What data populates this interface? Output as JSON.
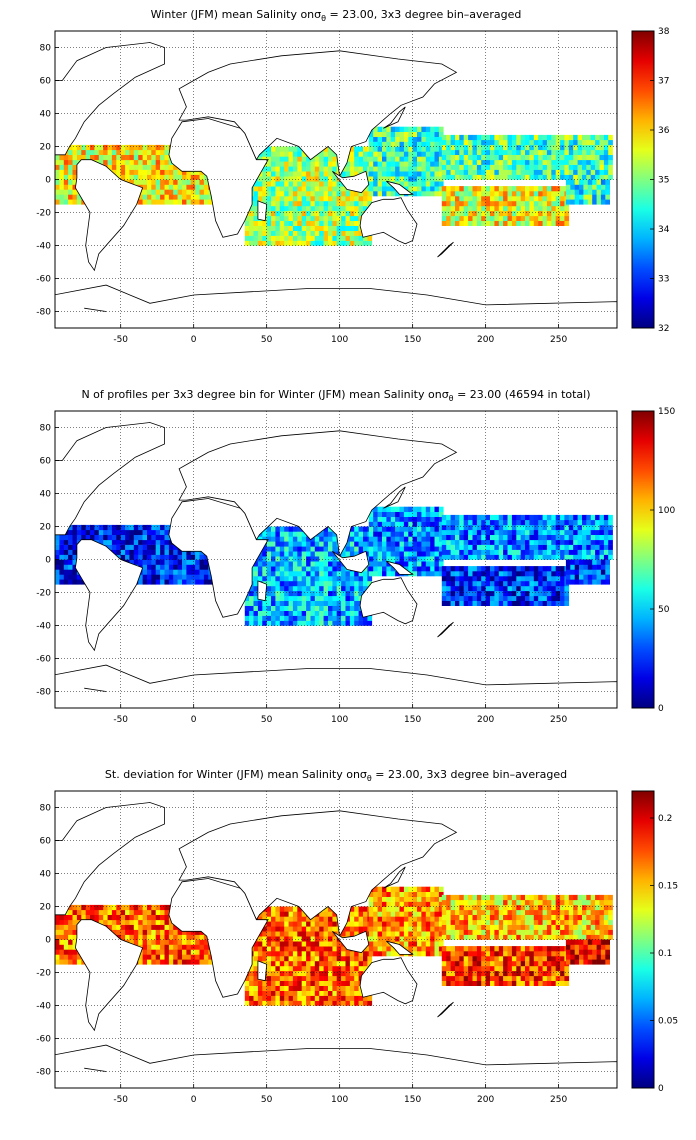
{
  "chart_data": [
    {
      "type": "heatmap",
      "title_prefix": "Winter (JFM) mean Salinity on",
      "title_sigma": "σ",
      "title_sub": "θ",
      "title_suffix": " = 23.00, 3x3 degree bin–averaged",
      "xlim": [
        -95,
        290
      ],
      "ylim": [
        -90,
        90
      ],
      "xticks": [
        "-50",
        "0",
        "50",
        "100",
        "150",
        "200",
        "250"
      ],
      "xtick_values": [
        -50,
        0,
        50,
        100,
        150,
        200,
        250
      ],
      "yticks": [
        "80",
        "60",
        "40",
        "20",
        "0",
        "-20",
        "-40",
        "-60",
        "-80"
      ],
      "ytick_values": [
        80,
        60,
        40,
        20,
        0,
        -20,
        -40,
        -60,
        -80
      ],
      "grid": true,
      "colormap": "jet",
      "colorbar": {
        "min": 32,
        "max": 38,
        "ticks": [
          "38",
          "37",
          "36",
          "35",
          "34",
          "33",
          "32"
        ],
        "tick_values": [
          38,
          37,
          36,
          35,
          34,
          33,
          32
        ]
      },
      "regions": [
        {
          "name": "tropical-atlantic",
          "lon": [
            -95,
            15
          ],
          "lat": [
            -15,
            20
          ],
          "value": 35.8
        },
        {
          "name": "indian-ocean",
          "lon": [
            35,
            120
          ],
          "lat": [
            -40,
            20
          ],
          "value": 35.2
        },
        {
          "name": "west-pacific-warm-pool",
          "lon": [
            120,
            170
          ],
          "lat": [
            -10,
            30
          ],
          "value": 34.6
        },
        {
          "name": "south-pacific",
          "lon": [
            170,
            255
          ],
          "lat": [
            -28,
            -5
          ],
          "value": 35.7
        },
        {
          "name": "north-pacific",
          "lon": [
            170,
            285
          ],
          "lat": [
            0,
            25
          ],
          "value": 34.7
        },
        {
          "name": "east-pacific",
          "lon": [
            255,
            285
          ],
          "lat": [
            -15,
            0
          ],
          "value": 34.5
        }
      ]
    },
    {
      "type": "heatmap",
      "title_prefix": "N of profiles per 3x3 degree bin for Winter (JFM) mean Salinity on",
      "title_sigma": "σ",
      "title_sub": "θ",
      "title_suffix": " = 23.00 (46594 in total)",
      "xlim": [
        -95,
        290
      ],
      "ylim": [
        -90,
        90
      ],
      "xticks": [
        "-50",
        "0",
        "50",
        "100",
        "150",
        "200",
        "250"
      ],
      "xtick_values": [
        -50,
        0,
        50,
        100,
        150,
        200,
        250
      ],
      "yticks": [
        "80",
        "60",
        "40",
        "20",
        "0",
        "-20",
        "-40",
        "-60",
        "-80"
      ],
      "ytick_values": [
        80,
        60,
        40,
        20,
        0,
        -20,
        -40,
        -60,
        -80
      ],
      "grid": true,
      "colormap": "jet",
      "colorbar": {
        "min": 0,
        "max": 150,
        "ticks": [
          "150",
          "100",
          "50",
          "0"
        ],
        "tick_values": [
          150,
          100,
          50,
          0
        ]
      },
      "regions": [
        {
          "name": "tropical-atlantic",
          "lon": [
            -95,
            15
          ],
          "lat": [
            -15,
            20
          ],
          "value": 20
        },
        {
          "name": "indian-ocean",
          "lon": [
            35,
            120
          ],
          "lat": [
            -40,
            20
          ],
          "value": 45
        },
        {
          "name": "west-pacific-warm-pool",
          "lon": [
            120,
            170
          ],
          "lat": [
            -10,
            30
          ],
          "value": 40
        },
        {
          "name": "south-pacific",
          "lon": [
            170,
            255
          ],
          "lat": [
            -28,
            -5
          ],
          "value": 25
        },
        {
          "name": "north-pacific",
          "lon": [
            170,
            285
          ],
          "lat": [
            0,
            25
          ],
          "value": 40
        },
        {
          "name": "east-pacific",
          "lon": [
            255,
            285
          ],
          "lat": [
            -15,
            0
          ],
          "value": 25
        }
      ]
    },
    {
      "type": "heatmap",
      "title_prefix": "St. deviation for Winter (JFM) mean Salinity on",
      "title_sigma": "σ",
      "title_sub": "θ",
      "title_suffix": " = 23.00, 3x3 degree bin–averaged",
      "xlim": [
        -95,
        290
      ],
      "ylim": [
        -90,
        90
      ],
      "xticks": [
        "-50",
        "0",
        "50",
        "100",
        "150",
        "200",
        "250"
      ],
      "xtick_values": [
        -50,
        0,
        50,
        100,
        150,
        200,
        250
      ],
      "yticks": [
        "80",
        "60",
        "40",
        "20",
        "0",
        "-20",
        "-40",
        "-60",
        "-80"
      ],
      "ytick_values": [
        80,
        60,
        40,
        20,
        0,
        -20,
        -40,
        -60,
        -80
      ],
      "grid": true,
      "colormap": "jet",
      "colorbar": {
        "min": 0,
        "max": 0.22,
        "ticks": [
          "0.2",
          "0.15",
          "0.1",
          "0.05",
          "0"
        ],
        "tick_values": [
          0.2,
          0.15,
          0.1,
          0.05,
          0
        ]
      },
      "regions": [
        {
          "name": "tropical-atlantic",
          "lon": [
            -95,
            15
          ],
          "lat": [
            -15,
            20
          ],
          "value": 0.17
        },
        {
          "name": "indian-ocean",
          "lon": [
            35,
            120
          ],
          "lat": [
            -40,
            20
          ],
          "value": 0.17
        },
        {
          "name": "west-pacific-warm-pool",
          "lon": [
            120,
            170
          ],
          "lat": [
            -10,
            30
          ],
          "value": 0.16
        },
        {
          "name": "south-pacific",
          "lon": [
            170,
            255
          ],
          "lat": [
            -28,
            -5
          ],
          "value": 0.18
        },
        {
          "name": "north-pacific",
          "lon": [
            170,
            285
          ],
          "lat": [
            0,
            25
          ],
          "value": 0.15
        },
        {
          "name": "east-pacific",
          "lon": [
            255,
            285
          ],
          "lat": [
            -15,
            0
          ],
          "value": 0.2
        }
      ]
    }
  ]
}
